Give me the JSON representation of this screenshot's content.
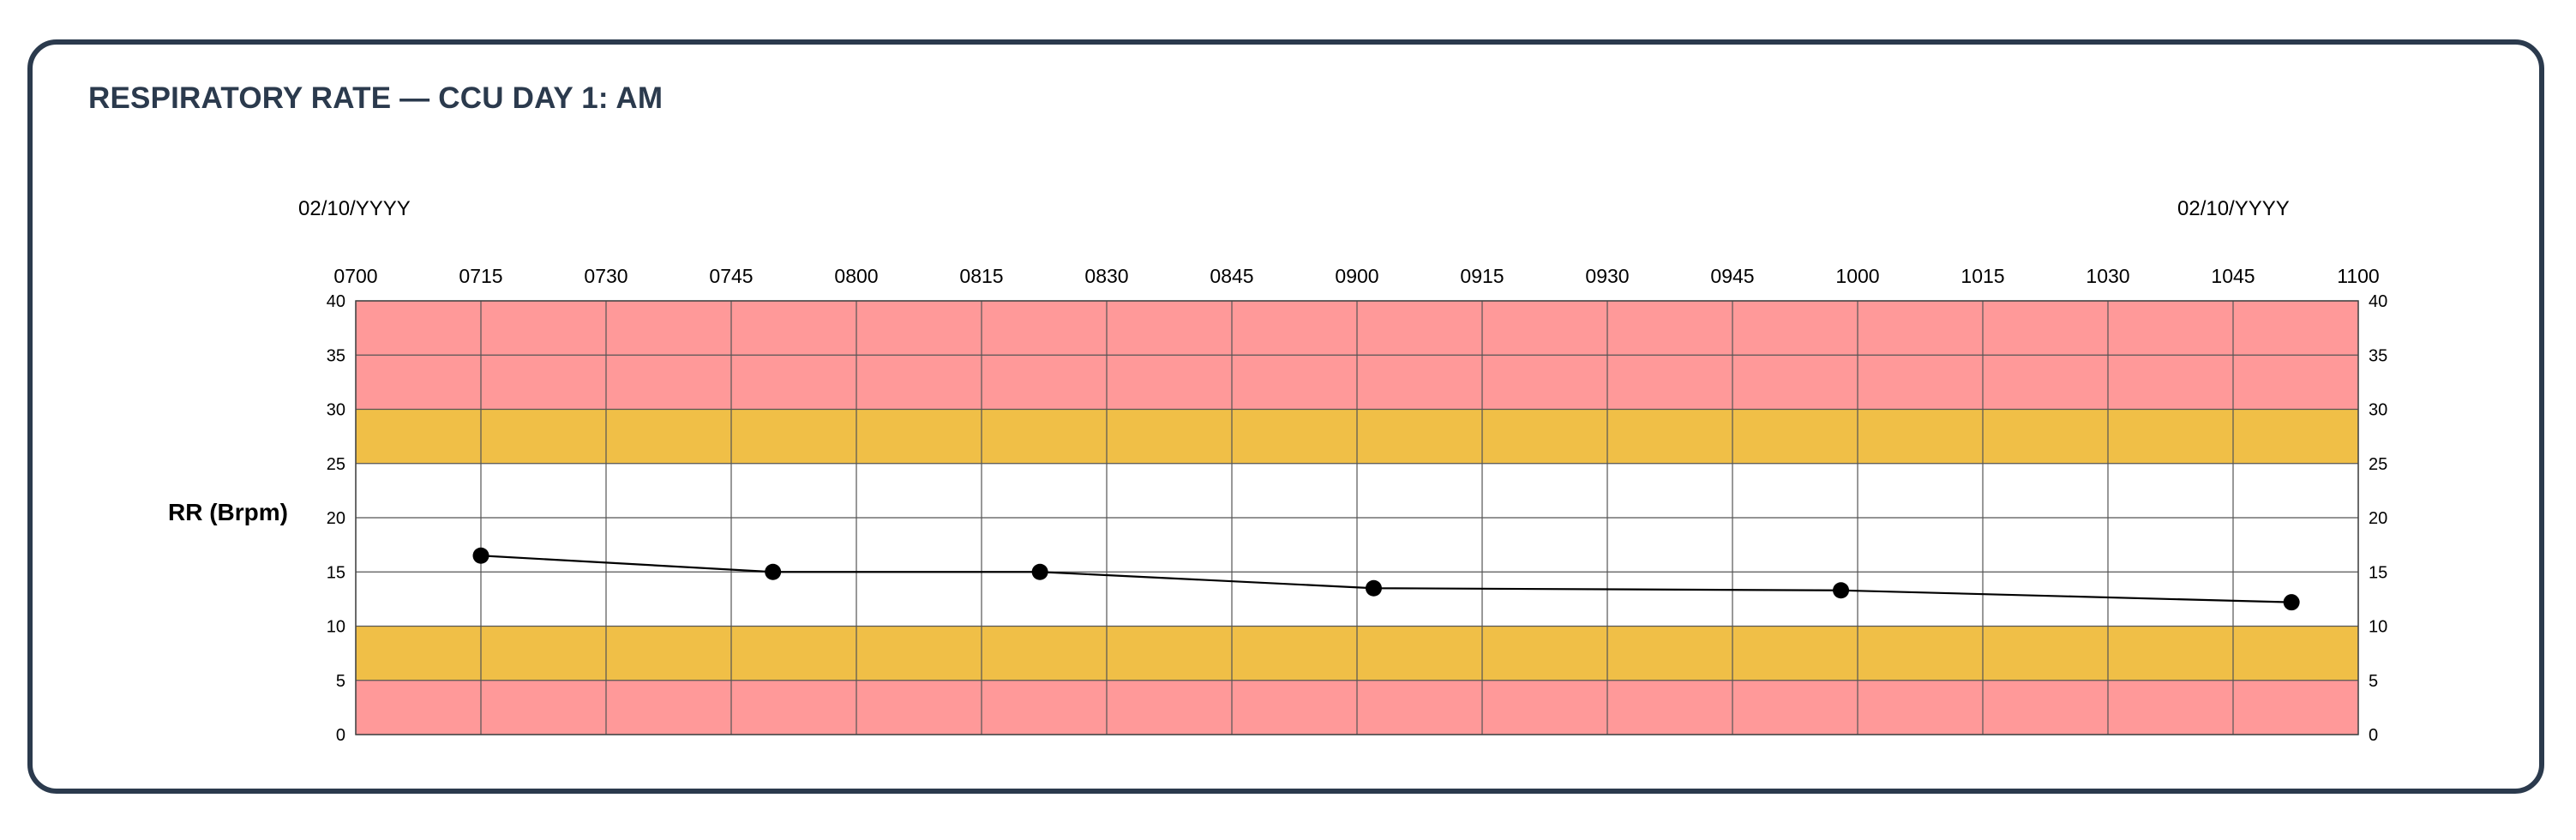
{
  "title": "RESPIRATORY RATE — CCU DAY 1: AM",
  "dates": {
    "left": "02/10/YYYY",
    "right": "02/10/YYYY"
  },
  "chart_data": {
    "type": "line",
    "title": "RESPIRATORY RATE — CCU DAY 1: AM",
    "xlabel": "",
    "ylabel": "RR (Brpm)",
    "x_ticks": [
      "0700",
      "0715",
      "0730",
      "0745",
      "0800",
      "0815",
      "0830",
      "0845",
      "0900",
      "0915",
      "0930",
      "0945",
      "1000",
      "1015",
      "1030",
      "1045",
      "1100"
    ],
    "xlim_minutes": [
      420,
      660
    ],
    "ylim": [
      0,
      40
    ],
    "y_ticks": [
      0,
      5,
      10,
      15,
      20,
      25,
      30,
      35,
      40
    ],
    "grid": true,
    "bands": [
      {
        "from": 0,
        "to": 5,
        "color": "#ff9999"
      },
      {
        "from": 5,
        "to": 10,
        "color": "#f0bf47"
      },
      {
        "from": 10,
        "to": 25,
        "color": "#ffffff"
      },
      {
        "from": 25,
        "to": 30,
        "color": "#f0bf47"
      },
      {
        "from": 30,
        "to": 40,
        "color": "#ff9999"
      }
    ],
    "series": [
      {
        "line_color": "#000000",
        "points": [
          {
            "time": "0715",
            "value": 16.5
          },
          {
            "time": "0750",
            "value": 15
          },
          {
            "time": "0822",
            "value": 15
          },
          {
            "time": "0902",
            "value": 13.5
          },
          {
            "time": "0958",
            "value": 13.3
          },
          {
            "time": "1052",
            "value": 12.2
          }
        ]
      }
    ]
  }
}
